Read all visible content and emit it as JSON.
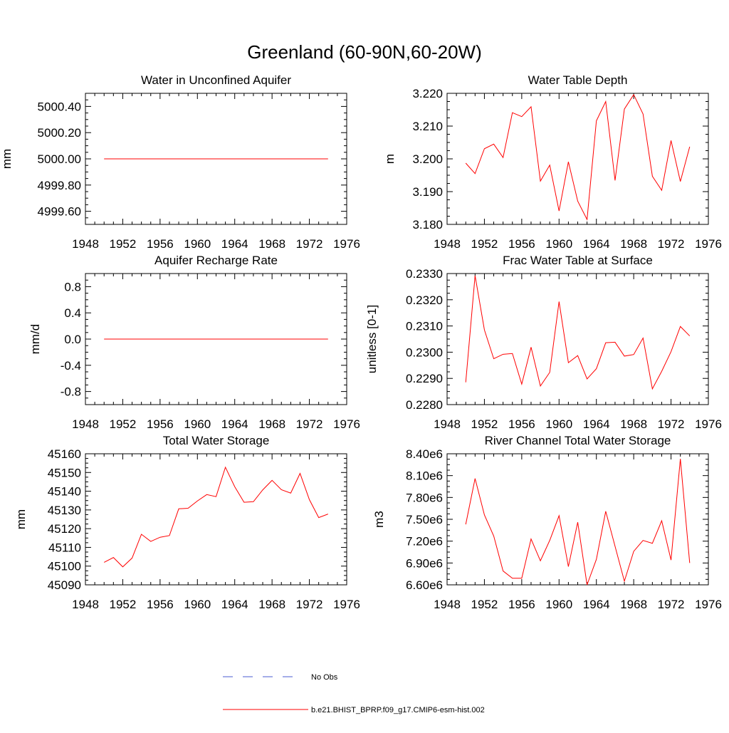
{
  "figure": {
    "title": "Greenland (60-90N,60-20W)"
  },
  "legend": {
    "items": [
      {
        "label": "No Obs",
        "color": "#4a5bd0",
        "style": "dashed"
      },
      {
        "label": "b.e21.BHIST_BPRP.f09_g17.CMIP6-esm-hist.002",
        "color": "#ff0000",
        "style": "solid"
      }
    ]
  },
  "chart_data": [
    {
      "type": "line",
      "title": "Water in Unconfined Aquifer",
      "xlabel": "",
      "ylabel": "mm",
      "xlim": [
        1948,
        1976
      ],
      "ylim": [
        4999.5,
        5000.5
      ],
      "xticks": [
        1948,
        1952,
        1956,
        1960,
        1964,
        1968,
        1972,
        1976
      ],
      "yticks": [
        4999.6,
        4999.8,
        5000.0,
        5000.2,
        5000.4
      ],
      "yticklabels": [
        "4999.60",
        "4999.80",
        "5000.00",
        "5000.20",
        "5000.40"
      ],
      "x": [
        1950,
        1974
      ],
      "series": [
        {
          "values": [
            5000.0,
            5000.0
          ],
          "color": "#ff0000"
        }
      ]
    },
    {
      "type": "line",
      "title": "Water Table Depth",
      "xlabel": "",
      "ylabel": "m",
      "xlim": [
        1948,
        1976
      ],
      "ylim": [
        3.18,
        3.22
      ],
      "xticks": [
        1948,
        1952,
        1956,
        1960,
        1964,
        1968,
        1972,
        1976
      ],
      "yticks": [
        3.18,
        3.19,
        3.2,
        3.21,
        3.22
      ],
      "yticklabels": [
        "3.180",
        "3.190",
        "3.200",
        "3.210",
        "3.220"
      ],
      "x": [
        1950,
        1951,
        1952,
        1953,
        1954,
        1955,
        1956,
        1957,
        1958,
        1959,
        1960,
        1961,
        1962,
        1963,
        1964,
        1965,
        1966,
        1967,
        1968,
        1969,
        1970,
        1971,
        1972,
        1973,
        1974
      ],
      "series": [
        {
          "values": [
            3.1987,
            3.1955,
            3.2031,
            3.2045,
            3.2004,
            3.2141,
            3.2129,
            3.2159,
            3.1932,
            3.1981,
            3.1841,
            3.1991,
            3.1871,
            3.1815,
            3.2116,
            3.2175,
            3.1934,
            3.2152,
            3.2196,
            3.2137,
            3.1947,
            3.1904,
            3.2056,
            3.1931,
            3.2037
          ],
          "color": "#ff0000"
        }
      ]
    },
    {
      "type": "line",
      "title": "Aquifer Recharge Rate",
      "xlabel": "",
      "ylabel": "mm/d",
      "xlim": [
        1948,
        1976
      ],
      "ylim": [
        -1.0,
        1.0
      ],
      "xticks": [
        1948,
        1952,
        1956,
        1960,
        1964,
        1968,
        1972,
        1976
      ],
      "yticks": [
        -0.8,
        -0.4,
        0.0,
        0.4,
        0.8
      ],
      "yticklabels": [
        "-0.8",
        "-0.4",
        "0.0",
        "0.4",
        "0.8"
      ],
      "x": [
        1950,
        1974
      ],
      "series": [
        {
          "values": [
            0.0,
            0.0
          ],
          "color": "#ff0000"
        }
      ]
    },
    {
      "type": "line",
      "title": "Frac Water Table at Surface",
      "xlabel": "",
      "ylabel": "unitless [0-1]",
      "xlim": [
        1948,
        1976
      ],
      "ylim": [
        0.228,
        0.233
      ],
      "xticks": [
        1948,
        1952,
        1956,
        1960,
        1964,
        1968,
        1972,
        1976
      ],
      "yticks": [
        0.228,
        0.229,
        0.23,
        0.231,
        0.232,
        0.233
      ],
      "yticklabels": [
        "0.2280",
        "0.2290",
        "0.2300",
        "0.2310",
        "0.2320",
        "0.2330"
      ],
      "x": [
        1950,
        1951,
        1952,
        1953,
        1954,
        1955,
        1956,
        1957,
        1958,
        1959,
        1960,
        1961,
        1962,
        1963,
        1964,
        1965,
        1966,
        1967,
        1968,
        1969,
        1970,
        1971,
        1972,
        1973,
        1974
      ],
      "series": [
        {
          "values": [
            0.22885,
            0.23292,
            0.23085,
            0.22975,
            0.22992,
            0.22995,
            0.22878,
            0.23019,
            0.22871,
            0.22923,
            0.23193,
            0.2296,
            0.22987,
            0.22898,
            0.22937,
            0.23036,
            0.23038,
            0.22985,
            0.22991,
            0.23054,
            0.2286,
            0.22927,
            0.23002,
            0.23098,
            0.23062
          ],
          "color": "#ff0000"
        }
      ]
    },
    {
      "type": "line",
      "title": "Total Water Storage",
      "xlabel": "",
      "ylabel": "mm",
      "xlim": [
        1948,
        1976
      ],
      "ylim": [
        45090,
        45160
      ],
      "xticks": [
        1948,
        1952,
        1956,
        1960,
        1964,
        1968,
        1972,
        1976
      ],
      "yticks": [
        45090,
        45100,
        45110,
        45120,
        45130,
        45140,
        45150,
        45160
      ],
      "yticklabels": [
        "45090",
        "45100",
        "45110",
        "45120",
        "45130",
        "45140",
        "45150",
        "45160"
      ],
      "x": [
        1950,
        1951,
        1952,
        1953,
        1954,
        1955,
        1956,
        1957,
        1958,
        1959,
        1960,
        1961,
        1962,
        1963,
        1964,
        1965,
        1966,
        1967,
        1968,
        1969,
        1970,
        1971,
        1972,
        1973,
        1974
      ],
      "series": [
        {
          "values": [
            45102.0,
            45104.6,
            45099.6,
            45104.3,
            45117.0,
            45113.2,
            45115.4,
            45116.3,
            45130.6,
            45130.9,
            45134.8,
            45138.2,
            45137.1,
            45152.8,
            45142.4,
            45134.1,
            45134.4,
            45140.7,
            45145.8,
            45140.8,
            45139.0,
            45149.5,
            45135.5,
            45125.9,
            45127.8
          ],
          "color": "#ff0000"
        }
      ]
    },
    {
      "type": "line",
      "title": "River Channel Total Water Storage",
      "xlabel": "",
      "ylabel": "m3",
      "xlim": [
        1948,
        1976
      ],
      "ylim": [
        6600000,
        8400000
      ],
      "xticks": [
        1948,
        1952,
        1956,
        1960,
        1964,
        1968,
        1972,
        1976
      ],
      "yticks": [
        6600000,
        6900000,
        7200000,
        7500000,
        7800000,
        8100000,
        8400000
      ],
      "yticklabels": [
        "6.60e6",
        "6.90e6",
        "7.20e6",
        "7.50e6",
        "7.80e6",
        "8.10e6",
        "8.40e6"
      ],
      "x": [
        1950,
        1951,
        1952,
        1953,
        1954,
        1955,
        1956,
        1957,
        1958,
        1959,
        1960,
        1961,
        1962,
        1963,
        1964,
        1965,
        1966,
        1967,
        1968,
        1969,
        1970,
        1971,
        1972,
        1973,
        1974
      ],
      "series": [
        {
          "values": [
            7430000,
            8060000,
            7560000,
            7270000,
            6790000,
            6690000,
            6690000,
            7230000,
            6930000,
            7210000,
            7550000,
            6850000,
            7460000,
            6600000,
            6950000,
            7610000,
            7130000,
            6650000,
            7060000,
            7210000,
            7170000,
            7480000,
            6940000,
            8330000,
            6900000
          ],
          "color": "#ff0000"
        }
      ]
    }
  ]
}
